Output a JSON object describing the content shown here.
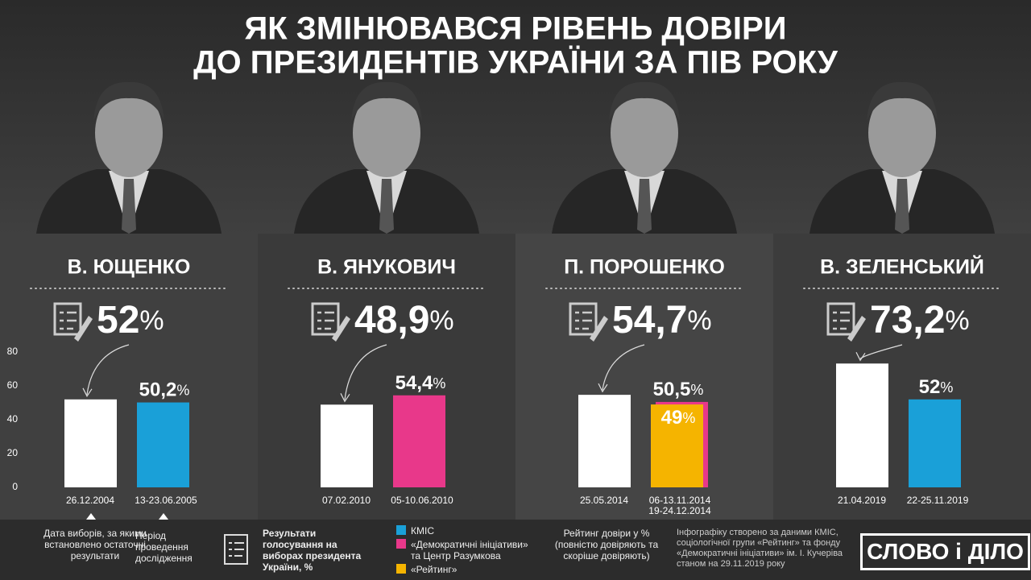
{
  "chart_data": {
    "type": "bar",
    "title": [
      "ЯК ЗМІНЮВАВСЯ РІВЕНЬ ДОВІРИ",
      "ДО ПРЕЗИДЕНТІВ УКРАЇНИ ЗА ПІВ РОКУ"
    ],
    "ylim": [
      0,
      80
    ],
    "yticks": [
      0,
      20,
      40,
      60,
      80
    ],
    "grid": false,
    "panels": [
      {
        "name": "В. ЮЩЕНКО",
        "bars": [
          {
            "date": "26.12.2004",
            "value": 52,
            "value_label": "52%",
            "color": "#ffffff"
          },
          {
            "date": "13-23.06.2005",
            "value": 50.2,
            "value_label": "50,2%",
            "color": "#1aa0d8"
          }
        ]
      },
      {
        "name": "В. ЯНУКОВИЧ",
        "bars": [
          {
            "date": "07.02.2010",
            "value": 48.9,
            "value_label": "48,9%",
            "color": "#ffffff"
          },
          {
            "date": "05-10.06.2010",
            "value": 54.4,
            "value_label": "54,4%",
            "color": "#e8388a"
          }
        ]
      },
      {
        "name": "П. ПОРОШЕНКО",
        "bars": [
          {
            "date": "25.05.2014",
            "value": 54.7,
            "value_label": "54,7%",
            "color": "#ffffff"
          },
          {
            "date": "06-13.11.2014",
            "value": 49,
            "value_label": "49%",
            "color": "#f5b400"
          },
          {
            "date": "19-24.12.2014",
            "value": 50.5,
            "value_label": "50,5%",
            "color": "#e8388a"
          }
        ]
      },
      {
        "name": "В. ЗЕЛЕНСЬКИЙ",
        "bars": [
          {
            "date": "21.04.2019",
            "value": 73.2,
            "value_label": "73,2%",
            "color": "#ffffff"
          },
          {
            "date": "22-25.11.2019",
            "value": 52,
            "value_label": "52%",
            "color": "#1aa0d8"
          }
        ]
      }
    ],
    "legend": {
      "election_date_note": "Дата виборів, за якими встановлено остаточні результати",
      "period_note": "Період проведення дослідження",
      "election_results": "Результати голосування на виборах президента України, %",
      "items": [
        {
          "name": "КМІС",
          "color": "#1aa0d8"
        },
        {
          "name": "«Демократичні ініціативи» та Центр Разумкова",
          "color": "#e8388a"
        },
        {
          "name": "«Рейтинг»",
          "color": "#f5b400"
        }
      ],
      "trust_note": "Рейтинг довіри у % (повністю довіряють та скоріше довіряють)"
    },
    "source": "Інфографіку створено за даними КМІС, соціологічної групи «Рейтинг» та фонду «Демократичні ініціативи» ім. І. Кучеріва станом на 29.11.2019 року",
    "logo": "СЛОВО і ДІЛО"
  }
}
